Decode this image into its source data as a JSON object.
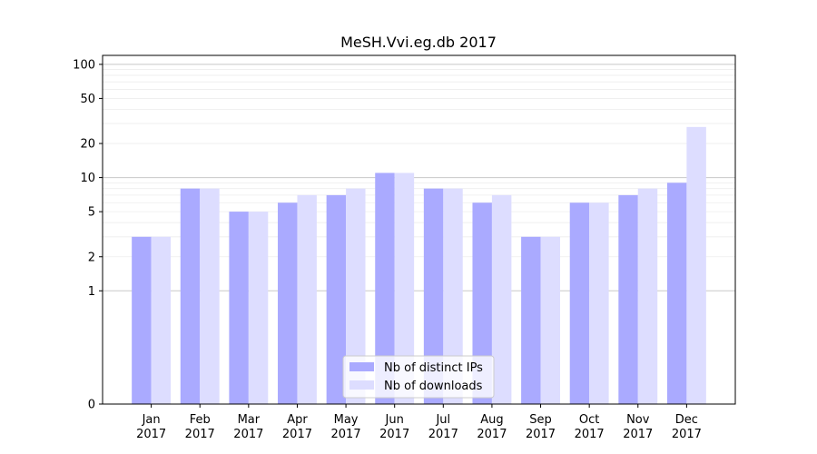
{
  "chart_data": {
    "type": "bar",
    "title": "MeSH.Vvi.eg.db 2017",
    "xlabel": "",
    "ylabel": "",
    "y_scale": "symlog",
    "ylim": [
      0,
      120
    ],
    "y_ticks": [
      0,
      1,
      2,
      5,
      10,
      20,
      50,
      100
    ],
    "categories": [
      [
        "Jan",
        "2017"
      ],
      [
        "Feb",
        "2017"
      ],
      [
        "Mar",
        "2017"
      ],
      [
        "Apr",
        "2017"
      ],
      [
        "May",
        "2017"
      ],
      [
        "Jun",
        "2017"
      ],
      [
        "Jul",
        "2017"
      ],
      [
        "Aug",
        "2017"
      ],
      [
        "Sep",
        "2017"
      ],
      [
        "Oct",
        "2017"
      ],
      [
        "Nov",
        "2017"
      ],
      [
        "Dec",
        "2017"
      ]
    ],
    "series": [
      {
        "name": "Nb of distinct IPs",
        "color": "#aaaaff",
        "values": [
          3,
          8,
          5,
          6,
          7,
          11,
          8,
          6,
          3,
          6,
          7,
          9
        ]
      },
      {
        "name": "Nb of downloads",
        "color": "#ddddff",
        "values": [
          3,
          8,
          5,
          7,
          8,
          11,
          8,
          7,
          3,
          6,
          8,
          28
        ]
      }
    ],
    "legend_position": "lower-center",
    "grid": "horizontal"
  }
}
